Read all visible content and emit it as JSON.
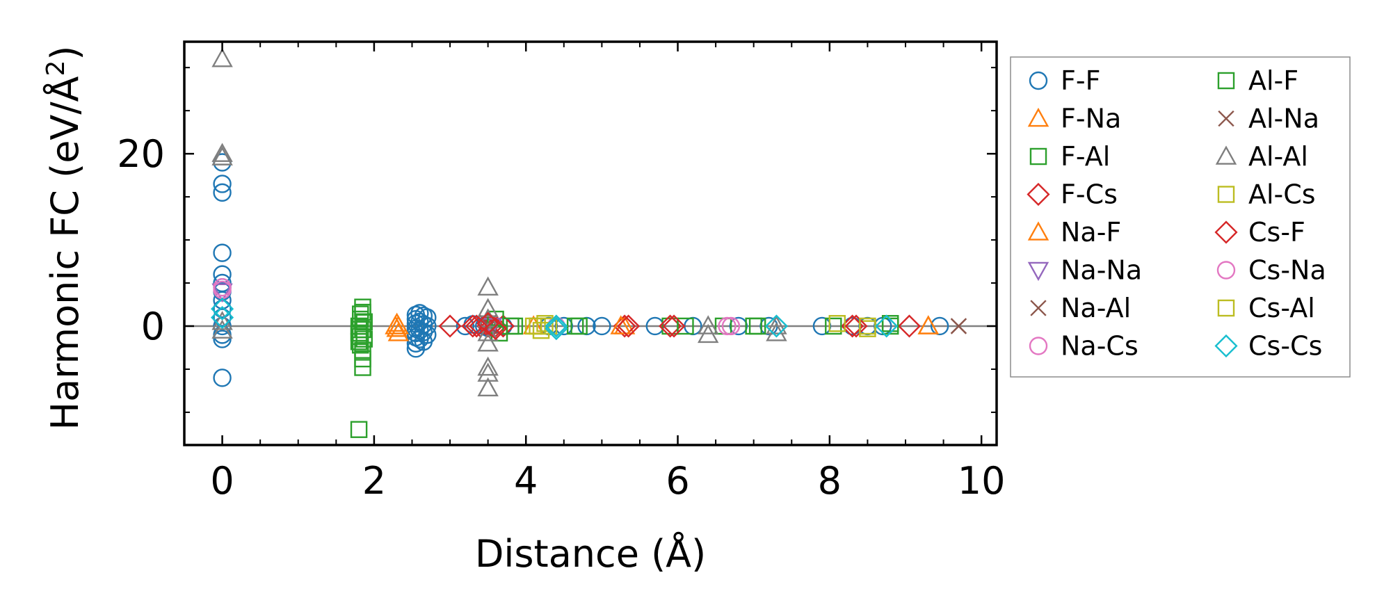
{
  "chart_data": {
    "type": "scatter",
    "xlabel": "Distance (Å)",
    "ylabel_main": "Harmonic FC (eV/Å",
    "ylabel_sup": "2",
    "ylabel_end": ")",
    "xlim": [
      -0.5,
      10.2
    ],
    "ylim": [
      -13.8,
      33.0
    ],
    "x_ticks": [
      0,
      2,
      4,
      6,
      8,
      10
    ],
    "x_tick_labels": [
      "0",
      "2",
      "4",
      "6",
      "8",
      "10"
    ],
    "y_ticks": [
      0,
      20
    ],
    "y_tick_labels": [
      "0",
      "20"
    ],
    "grid": false,
    "legend_position": "outside-right",
    "legend_columns": 2,
    "series": [
      {
        "name": "F-F",
        "marker": "circle",
        "color": "#1f77b4",
        "points": [
          [
            0,
            19
          ],
          [
            0,
            16.5
          ],
          [
            0,
            15.5
          ],
          [
            0,
            8.5
          ],
          [
            0,
            6
          ],
          [
            0,
            5
          ],
          [
            0,
            4.5
          ],
          [
            0,
            4
          ],
          [
            0,
            3
          ],
          [
            0,
            2
          ],
          [
            0,
            1
          ],
          [
            0,
            0
          ],
          [
            0,
            -1
          ],
          [
            0,
            -1.5
          ],
          [
            0,
            -6
          ],
          [
            2.55,
            1.3
          ],
          [
            2.55,
            0.8
          ],
          [
            2.55,
            0.3
          ],
          [
            2.55,
            -0.3
          ],
          [
            2.55,
            -0.8
          ],
          [
            2.55,
            -1.3
          ],
          [
            2.55,
            -2
          ],
          [
            2.55,
            -2.6
          ],
          [
            2.6,
            1.5
          ],
          [
            2.6,
            0.5
          ],
          [
            2.6,
            -0.5
          ],
          [
            2.6,
            -1.5
          ],
          [
            2.65,
            1.2
          ],
          [
            2.65,
            0.2
          ],
          [
            2.65,
            -0.7
          ],
          [
            2.65,
            -1.8
          ],
          [
            2.7,
            1
          ],
          [
            2.7,
            0
          ],
          [
            2.7,
            -1
          ],
          [
            3.2,
            0
          ],
          [
            3.3,
            0.2
          ],
          [
            3.45,
            0
          ],
          [
            3.5,
            -0.2
          ],
          [
            3.7,
            0
          ],
          [
            4.3,
            0
          ],
          [
            4.5,
            0
          ],
          [
            4.8,
            0
          ],
          [
            5.0,
            0
          ],
          [
            5.7,
            0
          ],
          [
            6.2,
            0
          ],
          [
            6.8,
            0
          ],
          [
            7.2,
            0
          ],
          [
            7.9,
            0
          ],
          [
            8.3,
            0
          ],
          [
            8.5,
            0
          ],
          [
            8.7,
            0
          ],
          [
            9.45,
            0
          ]
        ]
      },
      {
        "name": "F-Na",
        "marker": "triangle-up",
        "color": "#ff7f0e",
        "points": [
          [
            2.3,
            0.3
          ],
          [
            2.3,
            -0.3
          ],
          [
            2.32,
            -0.8
          ],
          [
            2.32,
            0
          ],
          [
            4.1,
            0
          ],
          [
            5.3,
            0
          ],
          [
            9.3,
            0
          ]
        ]
      },
      {
        "name": "F-Al",
        "marker": "square",
        "color": "#2ca02c",
        "points": [
          [
            1.8,
            -12
          ],
          [
            1.8,
            -1.8
          ],
          [
            1.8,
            -0.8
          ],
          [
            1.8,
            0
          ],
          [
            1.82,
            0.8
          ],
          [
            1.82,
            1.4
          ],
          [
            1.82,
            -1.2
          ],
          [
            1.82,
            -2.2
          ],
          [
            1.85,
            2.2
          ],
          [
            1.85,
            1.6
          ],
          [
            1.85,
            -0.4
          ],
          [
            1.85,
            -2.8
          ],
          [
            1.85,
            -3.8
          ],
          [
            1.85,
            -4.8
          ],
          [
            1.87,
            0.5
          ],
          [
            1.87,
            -1.5
          ],
          [
            3.85,
            0
          ],
          [
            4.7,
            0
          ],
          [
            5.9,
            0
          ],
          [
            6.6,
            0
          ],
          [
            7.0,
            0
          ],
          [
            8.8,
            0
          ]
        ]
      },
      {
        "name": "F-Cs",
        "marker": "diamond",
        "color": "#d62728",
        "points": [
          [
            3.0,
            0
          ],
          [
            3.3,
            0
          ],
          [
            3.4,
            0
          ],
          [
            3.5,
            0
          ],
          [
            3.55,
            0
          ],
          [
            3.6,
            0
          ],
          [
            3.7,
            0
          ],
          [
            5.3,
            0
          ],
          [
            5.9,
            0
          ],
          [
            8.3,
            0
          ],
          [
            9.05,
            0
          ]
        ]
      },
      {
        "name": "Na-F",
        "marker": "triangle-up",
        "color": "#ff7f0e",
        "points": [
          [
            2.28,
            0
          ],
          [
            5.25,
            0
          ],
          [
            9.3,
            0
          ]
        ]
      },
      {
        "name": "Na-Na",
        "marker": "triangle-down",
        "color": "#9467bd",
        "points": [
          [
            0,
            4
          ],
          [
            3.55,
            0
          ]
        ]
      },
      {
        "name": "Na-Al",
        "marker": "x",
        "color": "#8c564b",
        "points": [
          [
            3.52,
            0
          ],
          [
            9.7,
            0
          ]
        ]
      },
      {
        "name": "Na-Cs",
        "marker": "circle",
        "color": "#e377c2",
        "points": [
          [
            0,
            4.5
          ],
          [
            6.65,
            0
          ],
          [
            4.4,
            0
          ]
        ]
      },
      {
        "name": "Al-F",
        "marker": "square",
        "color": "#2ca02c",
        "points": [
          [
            3.6,
            0.8
          ],
          [
            3.65,
            -0.8
          ],
          [
            3.8,
            0
          ],
          [
            4.65,
            0
          ],
          [
            6.1,
            0
          ],
          [
            7.05,
            0
          ],
          [
            8.05,
            0
          ],
          [
            8.8,
            0.3
          ]
        ]
      },
      {
        "name": "Al-Na",
        "marker": "x",
        "color": "#8c564b",
        "points": [
          [
            9.7,
            0
          ]
        ]
      },
      {
        "name": "Al-Al",
        "marker": "triangle-up",
        "color": "#7f7f7f",
        "points": [
          [
            0,
            31
          ],
          [
            0,
            20
          ],
          [
            0,
            19.6
          ],
          [
            0,
            0.5
          ],
          [
            0,
            -0.5
          ],
          [
            3.5,
            4.5
          ],
          [
            3.5,
            2
          ],
          [
            3.5,
            0.8
          ],
          [
            3.5,
            -0.8
          ],
          [
            3.5,
            -2
          ],
          [
            3.5,
            -4.8
          ],
          [
            3.5,
            -5.5
          ],
          [
            3.5,
            -7.2
          ],
          [
            6.4,
            -1
          ],
          [
            6.4,
            0
          ],
          [
            7.3,
            -0.8
          ],
          [
            7.3,
            0
          ]
        ]
      },
      {
        "name": "Al-Cs",
        "marker": "square",
        "color": "#bcbd22",
        "points": [
          [
            4.15,
            0
          ],
          [
            4.2,
            -0.5
          ],
          [
            4.25,
            0.3
          ],
          [
            8.1,
            0.3
          ],
          [
            8.5,
            -0.3
          ]
        ]
      },
      {
        "name": "Cs-F",
        "marker": "diamond",
        "color": "#d62728",
        "points": [
          [
            3.35,
            0
          ],
          [
            3.5,
            0.3
          ],
          [
            3.6,
            -0.3
          ],
          [
            5.35,
            0
          ],
          [
            5.95,
            0
          ],
          [
            8.35,
            0
          ]
        ]
      },
      {
        "name": "Cs-Na",
        "marker": "circle",
        "color": "#e377c2",
        "points": [
          [
            0,
            4.2
          ],
          [
            6.7,
            0
          ]
        ]
      },
      {
        "name": "Cs-Al",
        "marker": "square",
        "color": "#bcbd22",
        "points": [
          [
            4.1,
            0
          ],
          [
            4.3,
            0
          ],
          [
            8.5,
            0
          ]
        ]
      },
      {
        "name": "Cs-Cs",
        "marker": "diamond",
        "color": "#17becf",
        "points": [
          [
            0,
            2
          ],
          [
            0,
            1
          ],
          [
            4.4,
            0
          ],
          [
            4.4,
            -0.3
          ],
          [
            7.3,
            0
          ],
          [
            8.75,
            0
          ]
        ]
      }
    ]
  }
}
